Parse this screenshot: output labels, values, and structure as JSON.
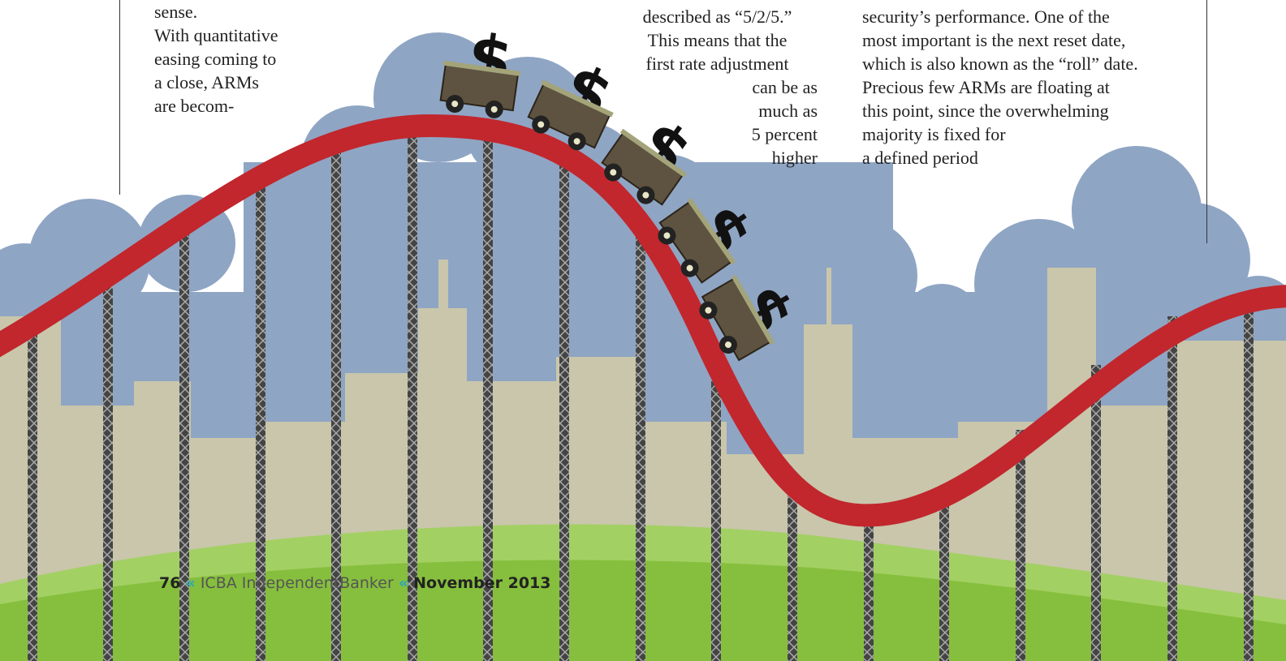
{
  "left_column": {
    "lines": [
      "sense.",
      "With quantitative",
      "easing coming to",
      "a close, ARMs",
      "are becom-"
    ]
  },
  "middle_column": {
    "lines": [
      "described as “5/2/5.”",
      "This means that the",
      "first rate adjustment",
      "can be as",
      "much as",
      "5 percent",
      "higher"
    ]
  },
  "right_column": {
    "lines": [
      "security’s performance. One of the",
      "most important is the next reset date,",
      "which is also known as the “roll” date.",
      "Precious few ARMs are floating at",
      "this point, since the overwhelming",
      "majority is fixed for",
      "a defined period"
    ]
  },
  "illustration": {
    "cart_symbol": "$"
  },
  "footer": {
    "page": "76",
    "publisher": "ICBA",
    "magazine": "IndependentBanker",
    "issue": "November 2013"
  }
}
